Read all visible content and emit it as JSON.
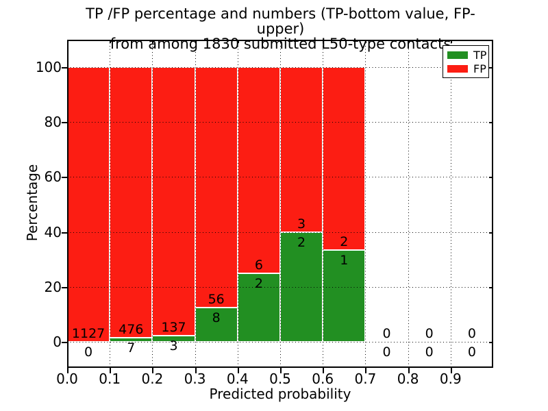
{
  "chart_data": {
    "type": "bar",
    "stacked": true,
    "title_lines": [
      "TP /FP percentage and numbers (TP-bottom value, FP-upper)",
      "from among 1830 submitted L50-type contacts"
    ],
    "total_submitted_contacts": 1830,
    "xlabel": "Predicted probability",
    "ylabel": "Percentage",
    "xlim": [
      0.0,
      1.0
    ],
    "ylim": [
      0,
      100
    ],
    "grid": "dotted",
    "legend_position": "upper right",
    "x_tick_values": [
      0.0,
      0.1,
      0.2,
      0.3,
      0.4,
      0.5,
      0.6,
      0.7,
      0.8,
      0.9
    ],
    "x_tick_labels": [
      "0.0",
      "0.1",
      "0.2",
      "0.3",
      "0.4",
      "0.5",
      "0.6",
      "0.7",
      "0.8",
      "0.9"
    ],
    "y_tick_values": [
      0,
      20,
      40,
      60,
      80,
      100
    ],
    "y_tick_labels": [
      "0",
      "20",
      "40",
      "60",
      "80",
      "100"
    ],
    "series": [
      {
        "name": "TP",
        "color": "#228f22",
        "counts": [
          0,
          7,
          3,
          8,
          2,
          2,
          1,
          0,
          0,
          0
        ]
      },
      {
        "name": "FP",
        "color": "#fc1d13",
        "counts": [
          1127,
          476,
          137,
          56,
          6,
          3,
          2,
          0,
          0,
          0
        ]
      }
    ],
    "bins": [
      {
        "x_start": 0.0,
        "x_end": 0.1,
        "tp_count": 0,
        "fp_count": 1127,
        "tp_pct": 0.0,
        "fp_pct": 100.0
      },
      {
        "x_start": 0.1,
        "x_end": 0.2,
        "tp_count": 7,
        "fp_count": 476,
        "tp_pct": 1.45,
        "fp_pct": 98.55
      },
      {
        "x_start": 0.2,
        "x_end": 0.3,
        "tp_count": 3,
        "fp_count": 137,
        "tp_pct": 2.14,
        "fp_pct": 97.86
      },
      {
        "x_start": 0.3,
        "x_end": 0.4,
        "tp_count": 8,
        "fp_count": 56,
        "tp_pct": 12.5,
        "fp_pct": 87.5
      },
      {
        "x_start": 0.4,
        "x_end": 0.5,
        "tp_count": 2,
        "fp_count": 6,
        "tp_pct": 25.0,
        "fp_pct": 75.0
      },
      {
        "x_start": 0.5,
        "x_end": 0.6,
        "tp_count": 2,
        "fp_count": 3,
        "tp_pct": 40.0,
        "fp_pct": 60.0
      },
      {
        "x_start": 0.6,
        "x_end": 0.7,
        "tp_count": 1,
        "fp_count": 2,
        "tp_pct": 33.33,
        "fp_pct": 66.67
      },
      {
        "x_start": 0.7,
        "x_end": 0.8,
        "tp_count": 0,
        "fp_count": 0,
        "tp_pct": 0,
        "fp_pct": 0
      },
      {
        "x_start": 0.8,
        "x_end": 0.9,
        "tp_count": 0,
        "fp_count": 0,
        "tp_pct": 0,
        "fp_pct": 0
      },
      {
        "x_start": 0.9,
        "x_end": 1.0,
        "tp_count": 0,
        "fp_count": 0,
        "tp_pct": 0,
        "fp_pct": 0
      }
    ],
    "legend": {
      "entries": [
        {
          "label": "TP",
          "color": "#228f22"
        },
        {
          "label": "FP",
          "color": "#fc1d13"
        }
      ]
    },
    "colors": {
      "tp": "#228f22",
      "fp": "#fc1d13",
      "bar_edge": "#ffffff",
      "grid": "#000000",
      "text": "#000000",
      "background": "#ffffff"
    }
  }
}
